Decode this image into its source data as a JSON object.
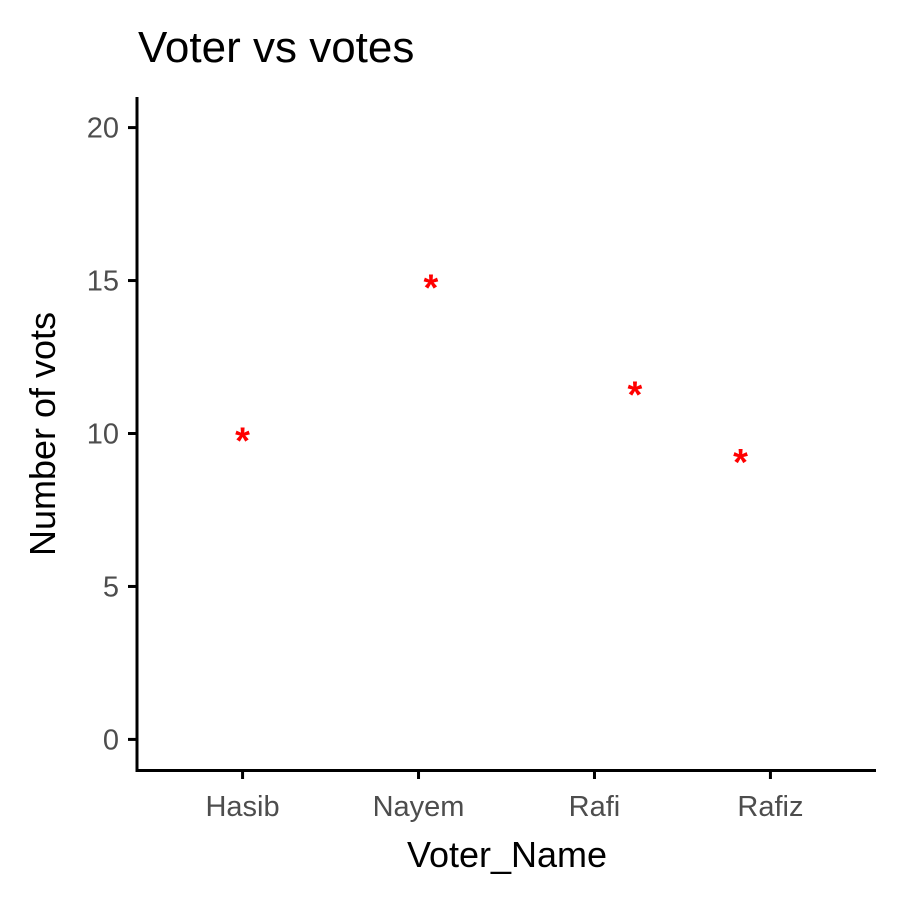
{
  "chart_data": {
    "type": "scatter",
    "title": "Voter vs votes",
    "xlabel": "Voter_Name",
    "ylabel": "Number of vots",
    "categories": [
      "Hasib",
      "Nayem",
      "Rafi",
      "Rafiz"
    ],
    "values": [
      10,
      15,
      11.5,
      9.3
    ],
    "x_jitter": [
      0.0,
      0.07,
      0.23,
      -0.17
    ],
    "ylim": [
      -1,
      21
    ],
    "yticks": [
      0,
      5,
      10,
      15,
      20
    ],
    "marker": "*",
    "marker_color": "#ff0000",
    "grid": false,
    "legend": "none"
  }
}
